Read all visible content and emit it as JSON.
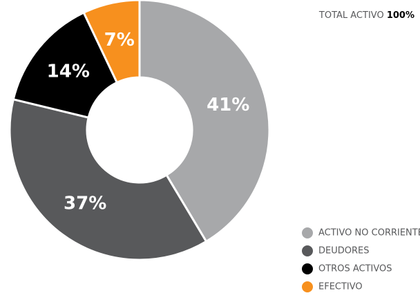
{
  "chart_data": {
    "type": "donut",
    "title": "TOTAL ACTIVO",
    "total_label": "100%",
    "categories": [
      "ACTIVO NO CORRIENTE",
      "DEUDORES",
      "OTROS ACTIVOS",
      "EFECTIVO"
    ],
    "values": [
      41,
      37,
      14,
      7
    ],
    "value_labels": [
      "41%",
      "37%",
      "14%",
      "7%"
    ],
    "colors": [
      "#a7a8aa",
      "#58595b",
      "#000000",
      "#f7901e"
    ],
    "legend": "bottom-right"
  }
}
